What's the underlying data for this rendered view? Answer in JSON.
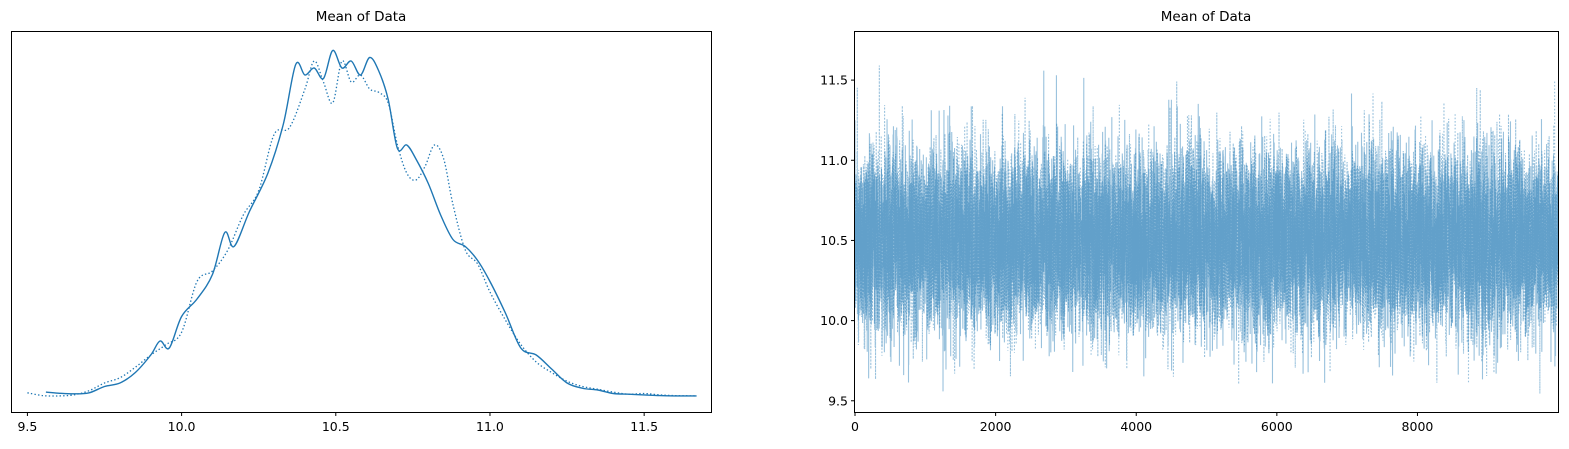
{
  "chart_data": [
    {
      "type": "line",
      "plot": "density",
      "title": "Mean of Data",
      "xlabel": "",
      "ylabel": "",
      "xlim": [
        9.45,
        11.72
      ],
      "xticks": [
        9.5,
        10.0,
        10.5,
        11.0,
        11.5
      ],
      "xtick_labels": [
        "9.5",
        "10.0",
        "10.5",
        "11.0",
        "11.5"
      ],
      "yticks": [],
      "grid": false,
      "color": "#1f77b4",
      "series": [
        {
          "linestyle": "solid",
          "x": [
            9.56,
            9.6,
            9.65,
            9.7,
            9.75,
            9.8,
            9.85,
            9.9,
            9.93,
            9.96,
            10.0,
            10.05,
            10.1,
            10.14,
            10.17,
            10.22,
            10.28,
            10.33,
            10.37,
            10.4,
            10.43,
            10.46,
            10.49,
            10.52,
            10.55,
            10.58,
            10.61,
            10.64,
            10.67,
            10.7,
            10.73,
            10.76,
            10.8,
            10.84,
            10.88,
            10.92,
            10.96,
            11.0,
            11.05,
            11.1,
            11.15,
            11.2,
            11.25,
            11.3,
            11.35,
            11.4,
            11.45,
            11.5,
            11.55,
            11.6,
            11.67
          ],
          "y": [
            0.014,
            0.011,
            0.009,
            0.012,
            0.03,
            0.04,
            0.07,
            0.12,
            0.16,
            0.14,
            0.23,
            0.28,
            0.35,
            0.47,
            0.43,
            0.53,
            0.64,
            0.78,
            0.95,
            0.92,
            0.94,
            0.91,
            0.99,
            0.94,
            0.96,
            0.92,
            0.97,
            0.93,
            0.85,
            0.71,
            0.72,
            0.68,
            0.61,
            0.52,
            0.45,
            0.43,
            0.39,
            0.33,
            0.24,
            0.14,
            0.12,
            0.08,
            0.04,
            0.025,
            0.02,
            0.01,
            0.008,
            0.006,
            0.004,
            0.003,
            0.003
          ]
        },
        {
          "linestyle": "dotted",
          "x": [
            9.5,
            9.55,
            9.6,
            9.65,
            9.7,
            9.75,
            9.8,
            9.85,
            9.9,
            9.95,
            10.0,
            10.05,
            10.1,
            10.15,
            10.2,
            10.25,
            10.3,
            10.35,
            10.4,
            10.43,
            10.46,
            10.49,
            10.52,
            10.55,
            10.58,
            10.61,
            10.64,
            10.67,
            10.7,
            10.73,
            10.76,
            10.79,
            10.82,
            10.85,
            10.88,
            10.92,
            10.96,
            11.0,
            11.05,
            11.1,
            11.15,
            11.2,
            11.25,
            11.3,
            11.35,
            11.4,
            11.45,
            11.5,
            11.55,
            11.6,
            11.67
          ],
          "y": [
            0.012,
            0.004,
            0.003,
            0.006,
            0.018,
            0.04,
            0.055,
            0.085,
            0.12,
            0.15,
            0.185,
            0.33,
            0.36,
            0.42,
            0.52,
            0.59,
            0.75,
            0.77,
            0.88,
            0.96,
            0.9,
            0.84,
            0.96,
            0.9,
            0.92,
            0.88,
            0.87,
            0.84,
            0.72,
            0.64,
            0.62,
            0.66,
            0.72,
            0.68,
            0.55,
            0.42,
            0.38,
            0.3,
            0.22,
            0.15,
            0.1,
            0.07,
            0.045,
            0.03,
            0.022,
            0.014,
            0.008,
            0.01,
            0.006,
            0.004,
            0.003
          ]
        }
      ]
    },
    {
      "type": "line",
      "plot": "trace",
      "title": "Mean of Data",
      "xlabel": "",
      "ylabel": "",
      "xlim": [
        0,
        9999
      ],
      "ylim": [
        9.43,
        11.8
      ],
      "xticks": [
        0,
        2000,
        4000,
        6000,
        8000
      ],
      "xtick_labels": [
        "0",
        "2000",
        "4000",
        "6000",
        "8000"
      ],
      "yticks": [
        9.5,
        10.0,
        10.5,
        11.0,
        11.5
      ],
      "ytick_labels": [
        "9.5",
        "10.0",
        "10.5",
        "11.0",
        "11.5"
      ],
      "grid": false,
      "color": "#1f77b4",
      "alpha": 0.45,
      "series": [
        {
          "linestyle": "solid",
          "n_draws": 10000,
          "mean": 10.5,
          "sd": 0.27,
          "min": 9.55,
          "max": 11.67
        },
        {
          "linestyle": "dotted",
          "n_draws": 10000,
          "mean": 10.5,
          "sd": 0.27,
          "min": 9.48,
          "max": 11.67
        }
      ]
    }
  ]
}
